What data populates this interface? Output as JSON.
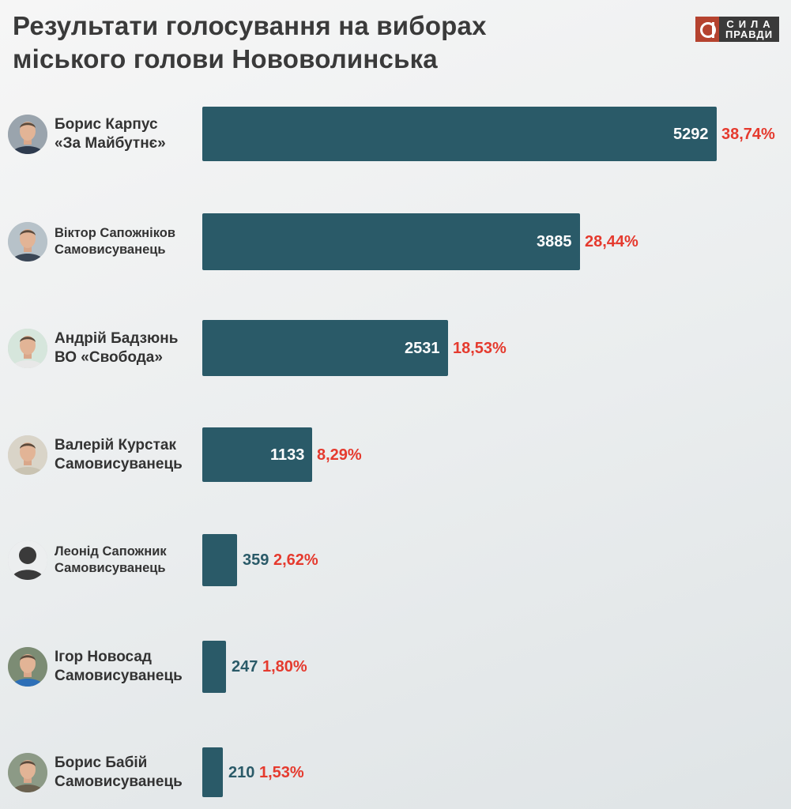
{
  "title": {
    "line1": "Результати голосування на виборах",
    "line2": "міського голови Нововолинська"
  },
  "logo": {
    "line1": "СИЛА",
    "line2": "ПРАВДИ"
  },
  "colors": {
    "bar": "#2a5a68",
    "percent": "#e53a2e",
    "title": "#3a3a3a",
    "logo_accent": "#b5432f"
  },
  "chart_data": {
    "type": "bar",
    "orientation": "horizontal",
    "title": "Результати голосування на виборах міського голови Нововолинська",
    "xlabel": "",
    "ylabel": "",
    "grid": false,
    "categories": [
      "Борис Карпус «За Майбутнє»",
      "Віктор Сапожніков Самовисуванець",
      "Андрій Бадзюнь ВО «Свобода»",
      "Валерій Курстак Самовисуванець",
      "Леонід Сапожник Самовисуванець",
      "Ігор Новосад Самовисуванець",
      "Борис Бабій Самовисуванець"
    ],
    "series": [
      {
        "values": [
          5292,
          3885,
          2531,
          1133,
          359,
          247,
          210
        ]
      }
    ],
    "percent_labels": [
      "38,74%",
      "28,44%",
      "18,53%",
      "8,29%",
      "2,62%",
      "1,80%",
      "1,53%"
    ],
    "xlim": [
      0,
      5292
    ]
  },
  "candidates": [
    {
      "name": "Борис Карпус",
      "party": "«За Майбутнє»",
      "count": "5292",
      "percent": "38,74%",
      "avatar_icon": "person-photo-icon"
    },
    {
      "name": "Віктор Сапожніков",
      "party": "Самовисуванець",
      "count": "3885",
      "percent": "28,44%",
      "avatar_icon": "person-photo-icon"
    },
    {
      "name": "Андрій Бадзюнь",
      "party": "ВО «Свобода»",
      "count": "2531",
      "percent": "18,53%",
      "avatar_icon": "person-photo-icon"
    },
    {
      "name": "Валерій Курстак",
      "party": "Самовисуванець",
      "count": "1133",
      "percent": "8,29%",
      "avatar_icon": "person-photo-icon"
    },
    {
      "name": "Леонід Сапожник",
      "party": "Самовисуванець",
      "count": "359",
      "percent": "2,62%",
      "avatar_icon": "person-silhouette-icon"
    },
    {
      "name": "Ігор Новосад",
      "party": "Самовисуванець",
      "count": "247",
      "percent": "1,80%",
      "avatar_icon": "person-photo-icon"
    },
    {
      "name": "Борис Бабій",
      "party": "Самовисуванець",
      "count": "210",
      "percent": "1,53%",
      "avatar_icon": "person-photo-icon"
    }
  ]
}
